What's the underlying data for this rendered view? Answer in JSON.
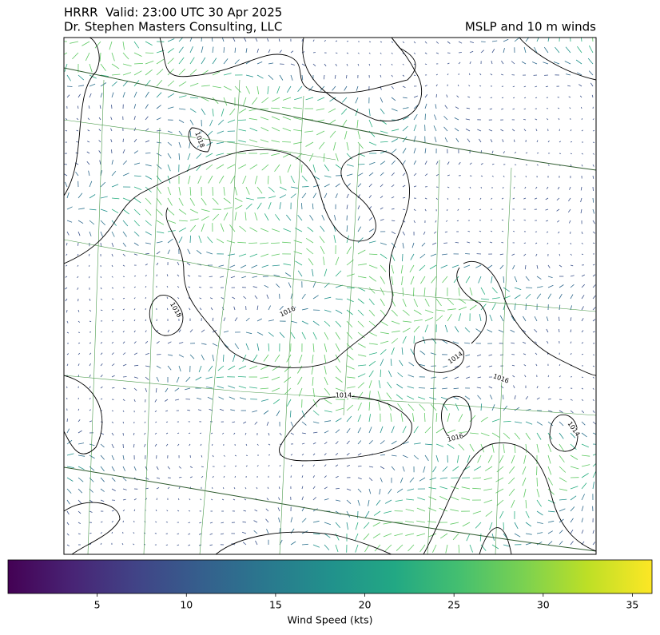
{
  "header": {
    "left_line1": "HRRR  Valid: 23:00 UTC 30 Apr 2025",
    "left_line2": "Dr. Stephen Masters Consulting, LLC",
    "right": "MSLP and 10 m winds"
  },
  "map": {
    "contour_labels": [
      "1018",
      "1018",
      "1016",
      "1014",
      "1016",
      "1014",
      "1016",
      "1014"
    ]
  },
  "colorbar": {
    "label": "Wind Speed (kts)",
    "colormap": "viridis",
    "lim": [
      0,
      36.1
    ],
    "ticks": [
      5,
      10,
      15,
      20,
      25,
      30,
      35
    ]
  }
}
